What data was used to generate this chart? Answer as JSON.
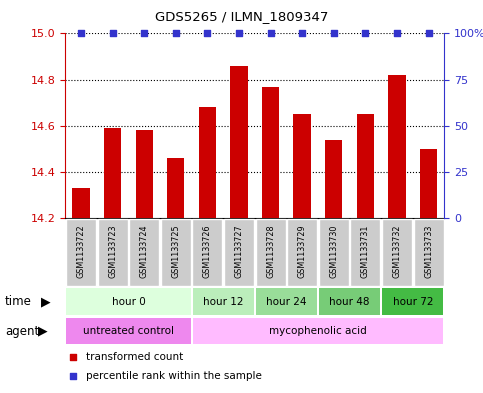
{
  "title": "GDS5265 / ILMN_1809347",
  "samples": [
    "GSM1133722",
    "GSM1133723",
    "GSM1133724",
    "GSM1133725",
    "GSM1133726",
    "GSM1133727",
    "GSM1133728",
    "GSM1133729",
    "GSM1133730",
    "GSM1133731",
    "GSM1133732",
    "GSM1133733"
  ],
  "bar_values": [
    14.33,
    14.59,
    14.58,
    14.46,
    14.68,
    14.86,
    14.77,
    14.65,
    14.54,
    14.65,
    14.82,
    14.5
  ],
  "bar_color": "#cc0000",
  "percentile_color": "#3333cc",
  "ylim_left": [
    14.2,
    15.0
  ],
  "ylim_right": [
    0,
    100
  ],
  "yticks_left": [
    14.2,
    14.4,
    14.6,
    14.8,
    15.0
  ],
  "yticks_right": [
    0,
    25,
    50,
    75,
    100
  ],
  "ytick_labels_right": [
    "0",
    "25",
    "50",
    "75",
    "100%"
  ],
  "background_color": "#ffffff",
  "time_groups": [
    {
      "label": "hour 0",
      "start": 0,
      "end": 4,
      "color": "#ddffdd"
    },
    {
      "label": "hour 12",
      "start": 4,
      "end": 6,
      "color": "#bbeebb"
    },
    {
      "label": "hour 24",
      "start": 6,
      "end": 8,
      "color": "#99dd99"
    },
    {
      "label": "hour 48",
      "start": 8,
      "end": 10,
      "color": "#77cc77"
    },
    {
      "label": "hour 72",
      "start": 10,
      "end": 12,
      "color": "#44bb44"
    }
  ],
  "agent_groups": [
    {
      "label": "untreated control",
      "start": 0,
      "end": 4,
      "color": "#ee88ee"
    },
    {
      "label": "mycophenolic acid",
      "start": 4,
      "end": 12,
      "color": "#ffbbff"
    }
  ],
  "legend_red_label": "transformed count",
  "legend_blue_label": "percentile rank within the sample",
  "time_label": "time",
  "agent_label": "agent",
  "sample_box_color": "#cccccc",
  "sample_box_edge": "#ffffff"
}
